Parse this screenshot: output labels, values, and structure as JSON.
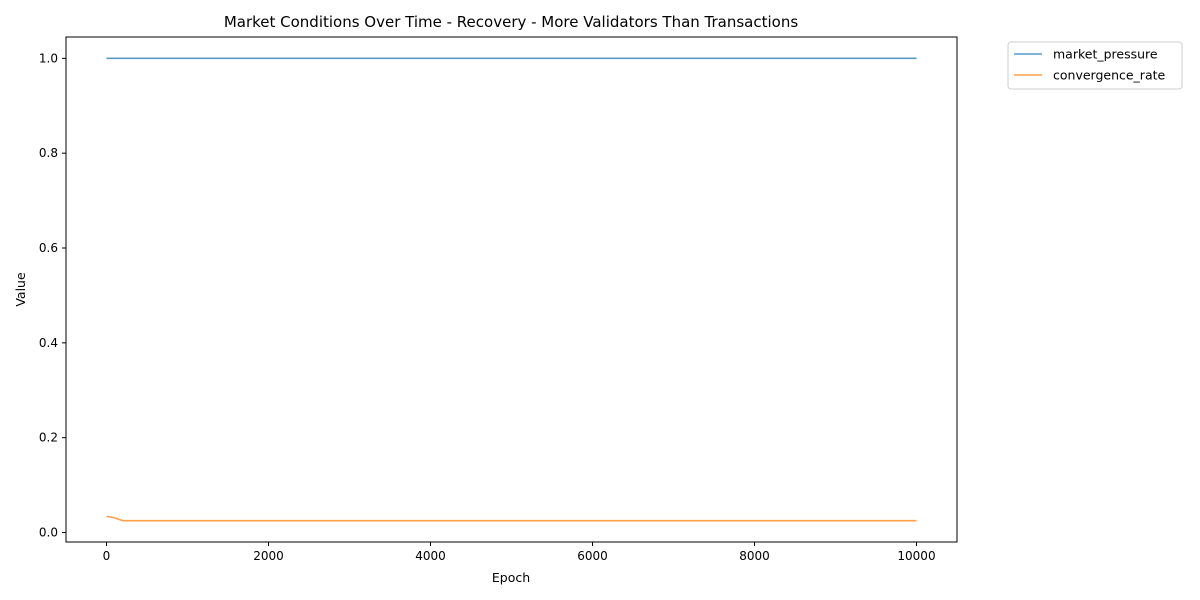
{
  "chart_data": {
    "type": "line",
    "title": "Market Conditions Over Time - Recovery - More Validators Than Transactions",
    "xlabel": "Epoch",
    "ylabel": "Value",
    "xlim": [
      -500,
      10500
    ],
    "ylim": [
      -0.02,
      1.045
    ],
    "x_ticks": [
      0,
      2000,
      4000,
      6000,
      8000,
      10000
    ],
    "x_tick_labels": [
      "0",
      "2000",
      "4000",
      "6000",
      "8000",
      "10000"
    ],
    "y_ticks": [
      0.0,
      0.2,
      0.4,
      0.6,
      0.8,
      1.0
    ],
    "y_tick_labels": [
      "0.0",
      "0.2",
      "0.4",
      "0.6",
      "0.8",
      "1.0"
    ],
    "grid": false,
    "legend_position": "outside-top-right",
    "series": [
      {
        "name": "market_pressure",
        "color": "#1f77b4",
        "x": [
          0,
          200,
          1000,
          2000,
          3000,
          4000,
          5000,
          6000,
          7000,
          8000,
          9000,
          10000
        ],
        "y": [
          1.0,
          1.0,
          1.0,
          1.0,
          1.0,
          1.0,
          1.0,
          1.0,
          1.0,
          1.0,
          1.0,
          1.0
        ]
      },
      {
        "name": "convergence_rate",
        "color": "#ff7f0e",
        "x": [
          0,
          100,
          200,
          1000,
          2000,
          3000,
          4000,
          5000,
          6000,
          7000,
          8000,
          9000,
          10000
        ],
        "y": [
          0.034,
          0.031,
          0.025,
          0.025,
          0.025,
          0.025,
          0.025,
          0.025,
          0.025,
          0.025,
          0.025,
          0.025,
          0.025
        ]
      }
    ]
  }
}
